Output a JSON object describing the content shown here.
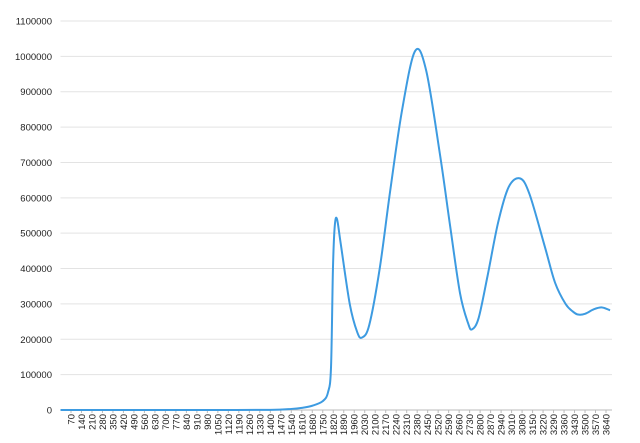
{
  "chart_data": {
    "type": "line",
    "series": [
      {
        "color": "#3d9be1",
        "x": [
          0,
          350,
          700,
          1050,
          1400,
          1540,
          1610,
          1680,
          1750,
          1785,
          1805,
          1818,
          1830,
          1845,
          1870,
          1930,
          1980,
          2012,
          2060,
          2130,
          2200,
          2280,
          2366,
          2440,
          2533,
          2600,
          2666,
          2720,
          2746,
          2790,
          2850,
          2920,
          2990,
          3066,
          3130,
          3233,
          3300,
          3370,
          3420,
          3453,
          3500,
          3560,
          3614,
          3667
        ],
        "values": [
          0,
          0,
          0,
          0,
          500,
          3000,
          6000,
          12000,
          25000,
          50000,
          120000,
          400000,
          520000,
          540000,
          470000,
          300000,
          220000,
          205000,
          240000,
          400000,
          620000,
          850000,
          1015000,
          960000,
          720000,
          520000,
          330000,
          245000,
          228000,
          260000,
          380000,
          530000,
          630000,
          655000,
          610000,
          460000,
          360000,
          300000,
          278000,
          270000,
          272000,
          285000,
          290000,
          282000
        ]
      }
    ],
    "xlim": [
      0,
      3680
    ],
    "xticks": [
      70,
      140,
      210,
      280,
      350,
      420,
      490,
      560,
      630,
      700,
      770,
      840,
      910,
      980,
      1050,
      1120,
      1190,
      1260,
      1330,
      1400,
      1470,
      1540,
      1610,
      1680,
      1750,
      1820,
      1890,
      1960,
      2030,
      2100,
      2170,
      2240,
      2310,
      2380,
      2450,
      2520,
      2590,
      2660,
      2730,
      2800,
      2870,
      2940,
      3010,
      3080,
      3150,
      3220,
      3290,
      3360,
      3430,
      3500,
      3570,
      3640
    ],
    "ylim": [
      0,
      1100000
    ],
    "yticks": [
      0,
      100000,
      200000,
      300000,
      400000,
      500000,
      600000,
      700000,
      800000,
      900000,
      1000000,
      1100000
    ],
    "grid": true
  }
}
